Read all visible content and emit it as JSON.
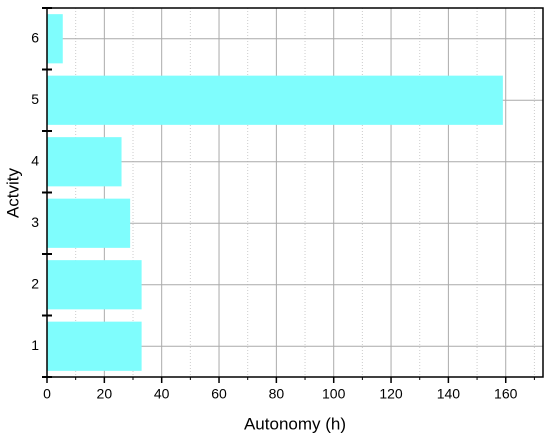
{
  "chart_data": {
    "type": "barh",
    "x_label": "Autonomy (h)",
    "y_label": "Actvity",
    "categories": [
      "1",
      "2",
      "3",
      "4",
      "5",
      "6"
    ],
    "values": [
      33,
      33,
      29,
      26,
      159,
      5.5
    ],
    "color": "#7ffdfd",
    "xlim": [
      0,
      173
    ],
    "xticks": [
      0,
      20,
      40,
      60,
      80,
      100,
      120,
      140,
      160
    ],
    "x_minor_ticks": [
      10,
      30,
      50,
      70,
      90,
      110,
      130,
      150,
      170
    ],
    "grid": true
  }
}
